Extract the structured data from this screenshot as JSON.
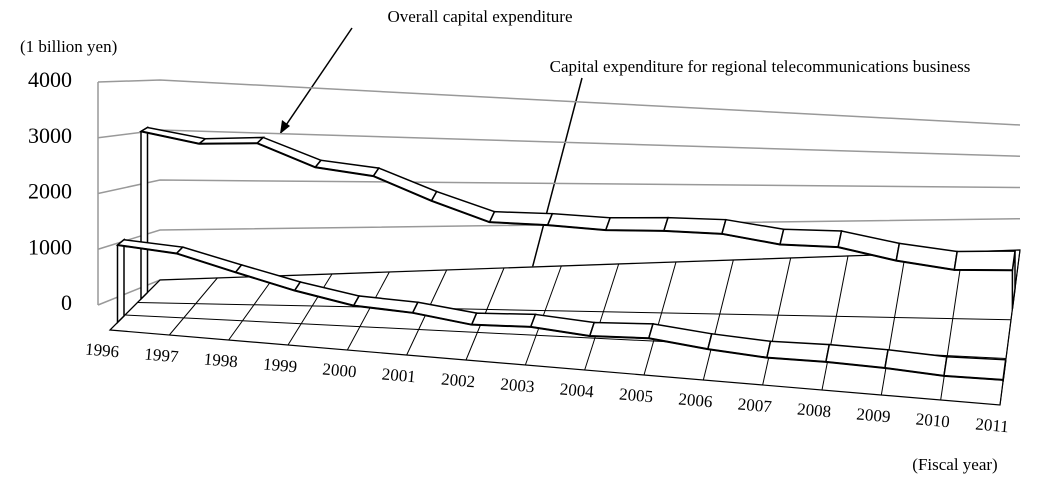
{
  "chart_data": {
    "type": "line3d",
    "y_axis_label": "(1 billion yen)",
    "x_axis_label": "(Fiscal year)",
    "annotations": [
      "Overall capital expenditure",
      "Capital expenditure for regional telecommunications business"
    ],
    "categories": [
      "1996",
      "1997",
      "1998",
      "1999",
      "2000",
      "2001",
      "2002",
      "2003",
      "2004",
      "2005",
      "2006",
      "2007",
      "2008",
      "2009",
      "2010",
      "2011"
    ],
    "series": [
      {
        "name": "Overall capital expenditure",
        "color": "#ffffff",
        "values": [
          3200,
          3050,
          3150,
          2750,
          2650,
          2200,
          1800,
          1800,
          1750,
          1800,
          1800,
          1600,
          1600,
          1300,
          1100,
          1150
        ]
      },
      {
        "name": "Capital expenditure for regional telecommunications business",
        "color": "#ffffff",
        "values": [
          1400,
          1350,
          1100,
          850,
          650,
          600,
          450,
          500,
          400,
          450,
          300,
          200,
          200,
          150,
          50,
          50
        ]
      }
    ],
    "ylim": [
      0,
      4000
    ],
    "yticks": [
      0,
      1000,
      2000,
      3000,
      4000
    ],
    "grid": true
  }
}
